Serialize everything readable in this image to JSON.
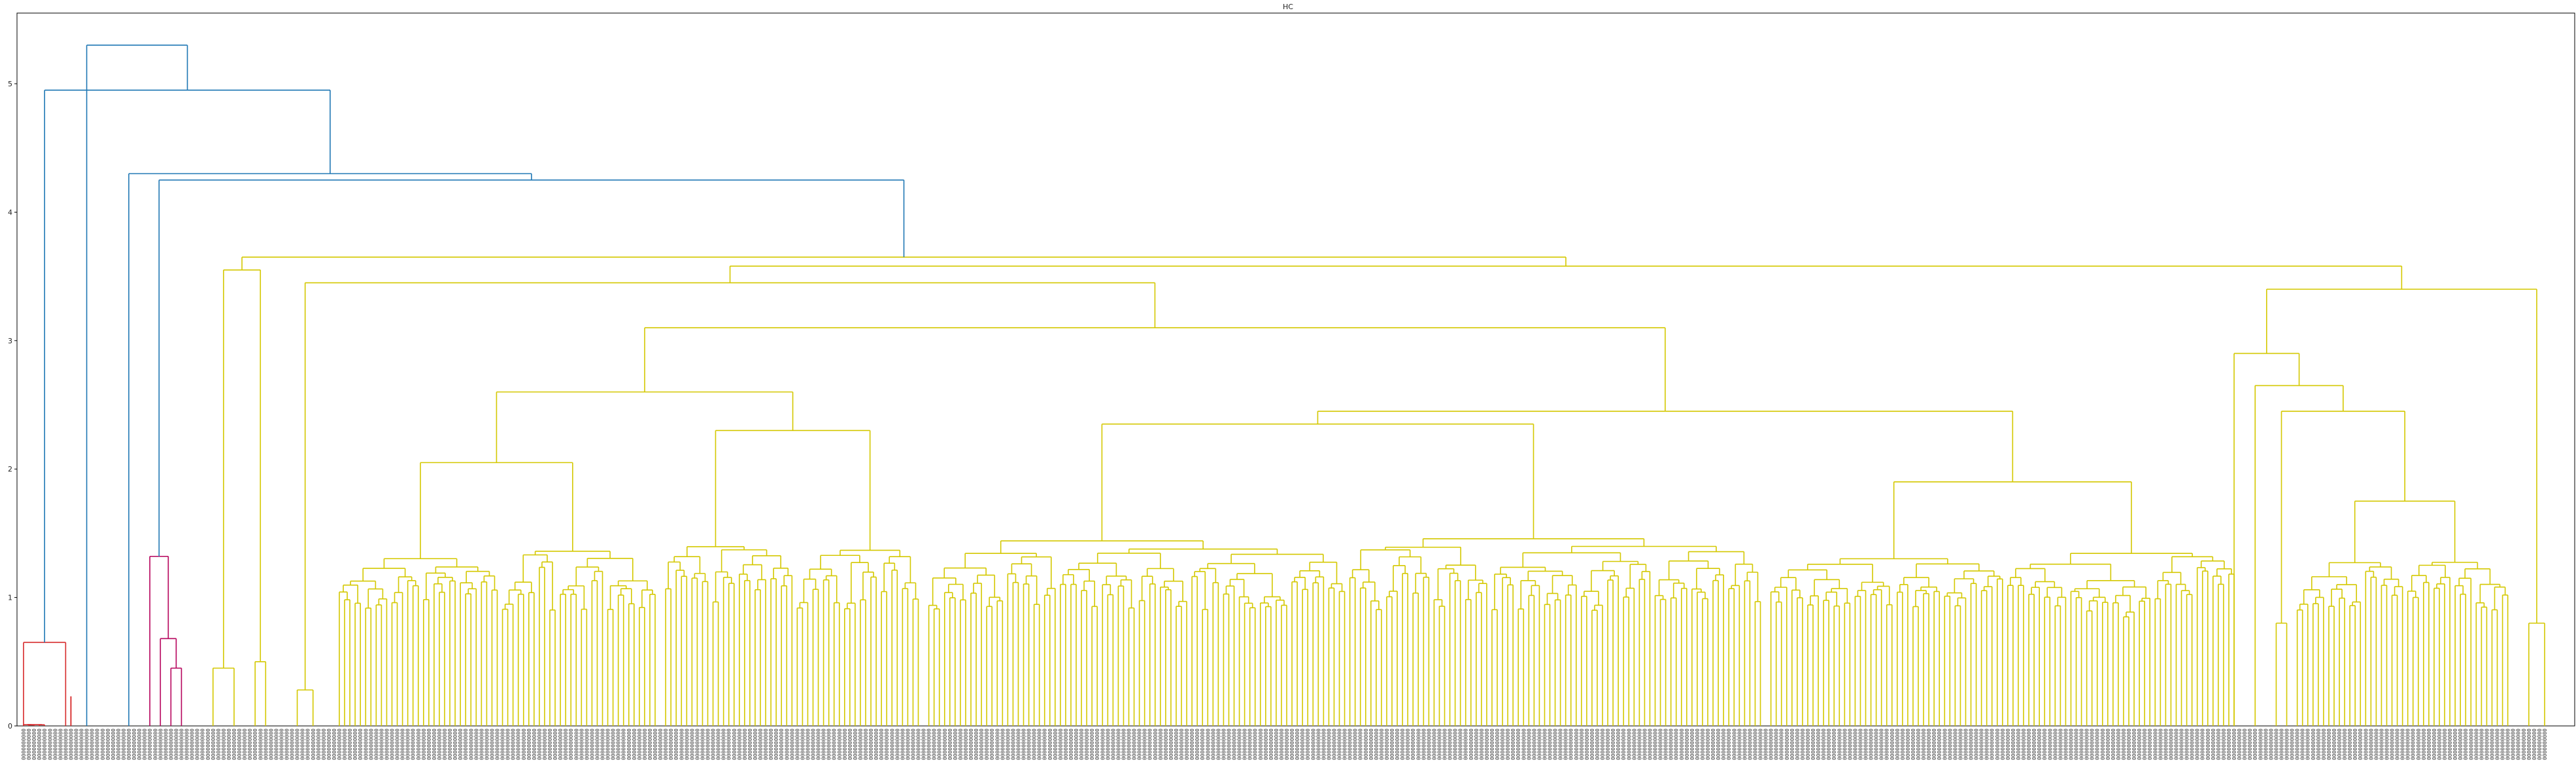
{
  "chart_data": {
    "type": "dendrogram",
    "title": "HC",
    "xlabel": "",
    "ylabel": "",
    "ylim": [
      0,
      5.55
    ],
    "yticks": [
      0,
      1,
      2,
      3,
      4,
      5
    ],
    "grid": false,
    "leaf_label_char": "0",
    "colors": {
      "red": "#d62728",
      "magenta": "#b5005a",
      "yellow": "#d4c800",
      "blue": "#1f77b4",
      "axis": "#000000"
    },
    "leaf_count": 480,
    "structure": {
      "root": 5.3,
      "level2": 4.95,
      "level3": 4.3,
      "level4": 4.25,
      "main_yellow_top": 3.65,
      "red_cluster_top": 0.65,
      "red_sub": 0.23,
      "magenta_top": 1.32,
      "magenta_sub": 0.68,
      "magenta_sub2": 0.45
    }
  }
}
